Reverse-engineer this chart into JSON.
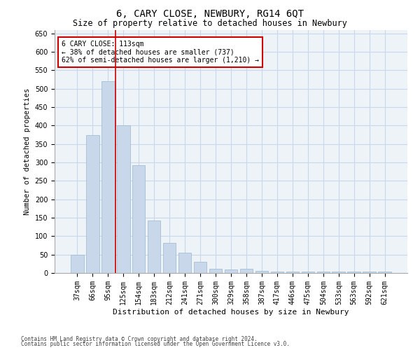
{
  "title": "6, CARY CLOSE, NEWBURY, RG14 6QT",
  "subtitle": "Size of property relative to detached houses in Newbury",
  "xlabel": "Distribution of detached houses by size in Newbury",
  "ylabel": "Number of detached properties",
  "categories": [
    "37sqm",
    "66sqm",
    "95sqm",
    "125sqm",
    "154sqm",
    "183sqm",
    "212sqm",
    "241sqm",
    "271sqm",
    "300sqm",
    "329sqm",
    "358sqm",
    "387sqm",
    "417sqm",
    "446sqm",
    "475sqm",
    "504sqm",
    "533sqm",
    "563sqm",
    "592sqm",
    "621sqm"
  ],
  "values": [
    50,
    375,
    520,
    400,
    293,
    142,
    82,
    55,
    30,
    12,
    10,
    12,
    5,
    4,
    4,
    4,
    4,
    4,
    4,
    4,
    4
  ],
  "bar_color": "#c8d8ea",
  "bar_edge_color": "#9ab8d0",
  "grid_color": "#c8d8ea",
  "background_color": "#eef3f8",
  "vline_x": 2.5,
  "vline_color": "#cc0000",
  "annotation_text": "6 CARY CLOSE: 113sqm\n← 38% of detached houses are smaller (737)\n62% of semi-detached houses are larger (1,210) →",
  "annotation_box_color": "#cc0000",
  "ylim": [
    0,
    660
  ],
  "yticks": [
    0,
    50,
    100,
    150,
    200,
    250,
    300,
    350,
    400,
    450,
    500,
    550,
    600,
    650
  ],
  "footer1": "Contains HM Land Registry data © Crown copyright and database right 2024.",
  "footer2": "Contains public sector information licensed under the Open Government Licence v3.0.",
  "title_fontsize": 10,
  "subtitle_fontsize": 8.5,
  "tick_fontsize": 7,
  "ylabel_fontsize": 7.5,
  "xlabel_fontsize": 8,
  "annotation_fontsize": 7,
  "footer_fontsize": 5.5
}
